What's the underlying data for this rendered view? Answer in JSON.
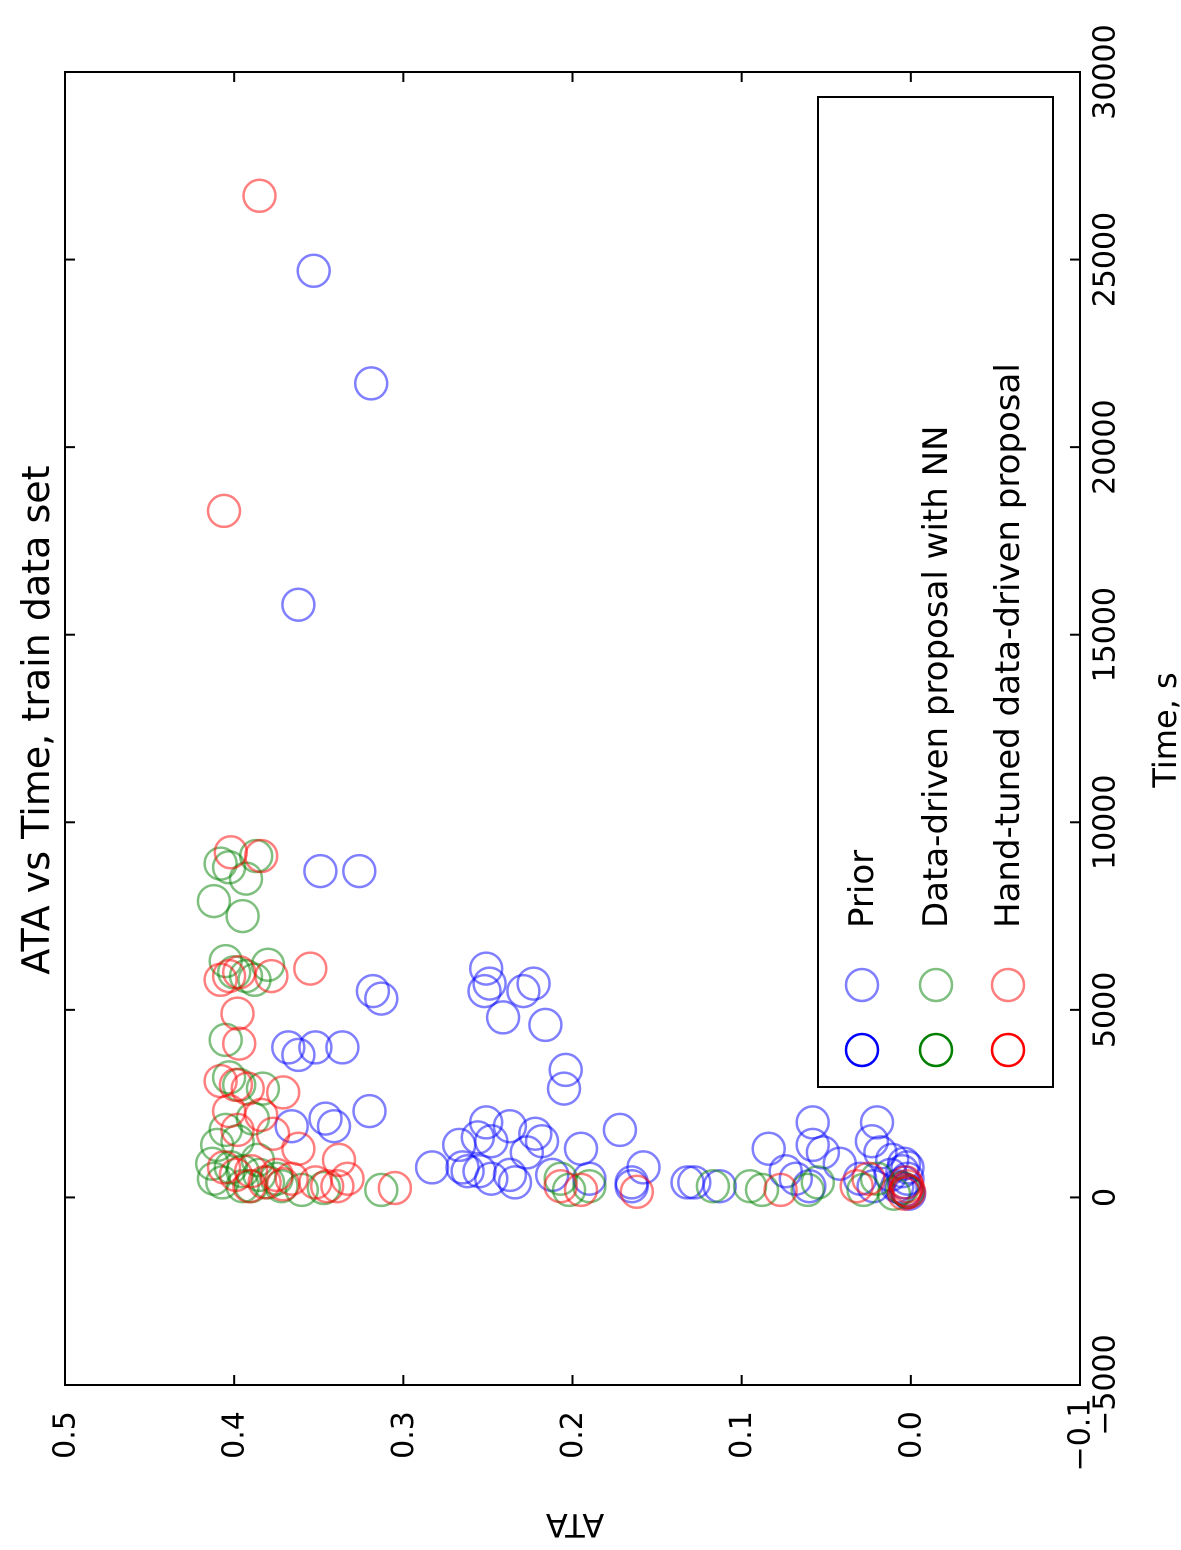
{
  "chart_data": {
    "type": "scatter",
    "title": "ATA vs Time, train data set",
    "xlabel": "Time, s",
    "ylabel": "ATA",
    "xlim": [
      -5000,
      30000
    ],
    "ylim": [
      -0.1,
      0.5
    ],
    "xticks": [
      -5000,
      0,
      5000,
      10000,
      15000,
      20000,
      25000,
      30000
    ],
    "xtick_labels": [
      "−5000",
      "0",
      "5000",
      "10000",
      "15000",
      "20000",
      "25000",
      "30000"
    ],
    "yticks": [
      -0.1,
      0.0,
      0.1,
      0.2,
      0.3,
      0.4,
      0.5
    ],
    "ytick_labels": [
      "−0.1",
      "0.0",
      "0.1",
      "0.2",
      "0.3",
      "0.4",
      "0.5"
    ],
    "grid": false,
    "legend_position": "top-right",
    "orientation": "rotated 90° clockwise",
    "series": [
      {
        "name": "Prior",
        "color": "#0000ff",
        "points": [
          [
            24700,
            0.353
          ],
          [
            21700,
            0.319
          ],
          [
            15800,
            0.362
          ],
          [
            8700,
            0.349
          ],
          [
            8700,
            0.326
          ],
          [
            5500,
            0.318
          ],
          [
            5300,
            0.313
          ],
          [
            6100,
            0.251
          ],
          [
            5700,
            0.249
          ],
          [
            5500,
            0.252
          ],
          [
            5700,
            0.223
          ],
          [
            5500,
            0.229
          ],
          [
            4800,
            0.241
          ],
          [
            4600,
            0.216
          ],
          [
            3400,
            0.204
          ],
          [
            2900,
            0.205
          ],
          [
            4000,
            0.368
          ],
          [
            3800,
            0.362
          ],
          [
            4000,
            0.352
          ],
          [
            4000,
            0.336
          ],
          [
            2300,
            0.32
          ],
          [
            2100,
            0.346
          ],
          [
            1900,
            0.341
          ],
          [
            1900,
            0.366
          ],
          [
            2000,
            0.251
          ],
          [
            1900,
            0.237
          ],
          [
            1600,
            0.256
          ],
          [
            1500,
            0.248
          ],
          [
            1400,
            0.267
          ],
          [
            1700,
            0.222
          ],
          [
            1500,
            0.218
          ],
          [
            1200,
            0.227
          ],
          [
            1300,
            0.195
          ],
          [
            1800,
            0.172
          ],
          [
            800,
            0.283
          ],
          [
            700,
            0.262
          ],
          [
            700,
            0.255
          ],
          [
            500,
            0.248
          ],
          [
            600,
            0.237
          ],
          [
            400,
            0.234
          ],
          [
            800,
            0.265
          ],
          [
            600,
            0.212
          ],
          [
            500,
            0.19
          ],
          [
            800,
            0.158
          ],
          [
            400,
            0.165
          ],
          [
            300,
            0.165
          ],
          [
            400,
            0.132
          ],
          [
            400,
            0.128
          ],
          [
            300,
            0.113
          ],
          [
            1300,
            0.084
          ],
          [
            700,
            0.074
          ],
          [
            500,
            0.068
          ],
          [
            300,
            0.06
          ],
          [
            1400,
            0.058
          ],
          [
            1200,
            0.052
          ],
          [
            2000,
            0.058
          ],
          [
            900,
            0.042
          ],
          [
            500,
            0.03
          ],
          [
            300,
            0.022
          ],
          [
            2000,
            0.02
          ],
          [
            1500,
            0.023
          ],
          [
            1200,
            0.018
          ],
          [
            1000,
            0.011
          ],
          [
            700,
            0.005
          ],
          [
            300,
            0.008
          ],
          [
            200,
            0.003
          ],
          [
            400,
            0.004
          ],
          [
            600,
            0.012
          ],
          [
            150,
            0.002
          ],
          [
            100,
            0.001
          ],
          [
            900,
            0.004
          ],
          [
            800,
            0.002
          ],
          [
            500,
            0.002
          ],
          [
            250,
            0.006
          ]
        ]
      },
      {
        "name": "Data-driven proposal with NN",
        "color": "#008000",
        "points": [
          [
            9100,
            0.387
          ],
          [
            8900,
            0.408
          ],
          [
            8800,
            0.403
          ],
          [
            8500,
            0.393
          ],
          [
            7900,
            0.412
          ],
          [
            7500,
            0.395
          ],
          [
            6300,
            0.405
          ],
          [
            6200,
            0.38
          ],
          [
            6000,
            0.4
          ],
          [
            5900,
            0.393
          ],
          [
            5800,
            0.388
          ],
          [
            4200,
            0.405
          ],
          [
            3200,
            0.403
          ],
          [
            3000,
            0.397
          ],
          [
            2900,
            0.383
          ],
          [
            2100,
            0.389
          ],
          [
            1800,
            0.405
          ],
          [
            1500,
            0.398
          ],
          [
            1400,
            0.41
          ],
          [
            1000,
            0.386
          ],
          [
            900,
            0.413
          ],
          [
            800,
            0.402
          ],
          [
            600,
            0.385
          ],
          [
            500,
            0.412
          ],
          [
            400,
            0.407
          ],
          [
            300,
            0.39
          ],
          [
            300,
            0.372
          ],
          [
            200,
            0.36
          ],
          [
            250,
            0.347
          ],
          [
            200,
            0.313
          ],
          [
            500,
            0.375
          ],
          [
            700,
            0.395
          ],
          [
            400,
            0.38
          ],
          [
            300,
            0.395
          ],
          [
            200,
            0.202
          ],
          [
            300,
            0.19
          ],
          [
            500,
            0.207
          ],
          [
            300,
            0.117
          ],
          [
            300,
            0.095
          ],
          [
            200,
            0.088
          ],
          [
            200,
            0.061
          ],
          [
            400,
            0.055
          ],
          [
            200,
            0.028
          ],
          [
            500,
            0.02
          ],
          [
            100,
            0.01
          ],
          [
            250,
            0.005
          ],
          [
            150,
            0.002
          ]
        ]
      },
      {
        "name": "Hand-tuned data-driven proposal",
        "color": "#ff0000",
        "points": [
          [
            26700,
            0.385
          ],
          [
            18300,
            0.406
          ],
          [
            9200,
            0.402
          ],
          [
            9100,
            0.384
          ],
          [
            6100,
            0.355
          ],
          [
            6000,
            0.397
          ],
          [
            5900,
            0.403
          ],
          [
            5800,
            0.408
          ],
          [
            5900,
            0.378
          ],
          [
            4900,
            0.398
          ],
          [
            4100,
            0.397
          ],
          [
            3100,
            0.408
          ],
          [
            3000,
            0.399
          ],
          [
            2900,
            0.392
          ],
          [
            2800,
            0.371
          ],
          [
            2300,
            0.403
          ],
          [
            2200,
            0.384
          ],
          [
            1800,
            0.398
          ],
          [
            1700,
            0.377
          ],
          [
            1300,
            0.362
          ],
          [
            1000,
            0.338
          ],
          [
            800,
            0.406
          ],
          [
            700,
            0.39
          ],
          [
            600,
            0.375
          ],
          [
            500,
            0.366
          ],
          [
            500,
            0.333
          ],
          [
            400,
            0.352
          ],
          [
            300,
            0.345
          ],
          [
            300,
            0.339
          ],
          [
            250,
            0.305
          ],
          [
            600,
            0.399
          ],
          [
            400,
            0.382
          ],
          [
            350,
            0.371
          ],
          [
            300,
            0.391
          ],
          [
            200,
            0.195
          ],
          [
            300,
            0.207
          ],
          [
            150,
            0.162
          ],
          [
            200,
            0.077
          ],
          [
            300,
            0.032
          ],
          [
            500,
            0.025
          ],
          [
            100,
            0.004
          ],
          [
            200,
            0.003
          ],
          [
            300,
            0.002
          ],
          [
            150,
            0.001
          ],
          [
            400,
            0.003
          ]
        ]
      }
    ]
  },
  "legend": {
    "entries": [
      {
        "label": "Prior",
        "color": "#0000ff"
      },
      {
        "label": "Data-driven proposal with NN",
        "color": "#008000"
      },
      {
        "label": "Hand-tuned data-driven proposal",
        "color": "#ff0000"
      }
    ]
  }
}
